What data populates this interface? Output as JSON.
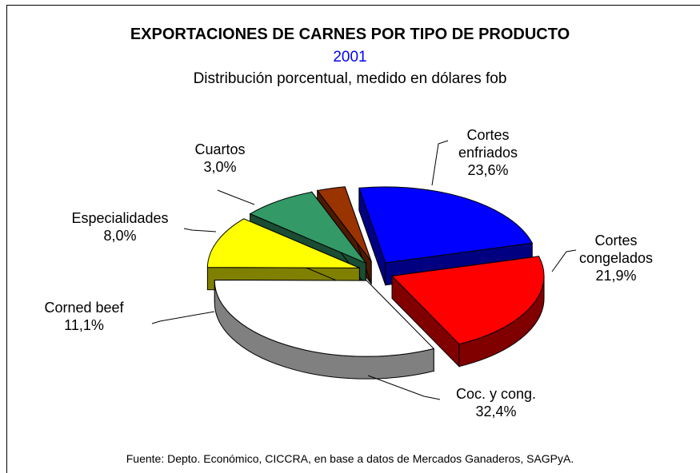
{
  "chart_data": {
    "type": "pie",
    "pie_3d": true,
    "exploded": true,
    "title": "EXPORTACIONES DE CARNES POR TIPO DE PRODUCTO",
    "subtitle": "2001",
    "description": "Distribución porcentual, medido en dólares fob",
    "source": "Fuente: Depto. Económico, CICCRA,  en base a datos de Mercados Ganaderos, SAGPyA.",
    "categories": [
      "Cortes enfriados",
      "Cortes congelados",
      "Coc. y cong.",
      "Corned beef",
      "Especialidades",
      "Cuartos"
    ],
    "values": [
      23.6,
      21.9,
      32.4,
      11.1,
      8.0,
      3.0
    ],
    "value_labels": [
      "23,6%",
      "21,9%",
      "32,4%",
      "11,1%",
      "8,0%",
      "3,0%"
    ],
    "colors": [
      "#0000ff",
      "#ff0000",
      "#ffffff",
      "#ffff00",
      "#339966",
      "#993300"
    ]
  }
}
